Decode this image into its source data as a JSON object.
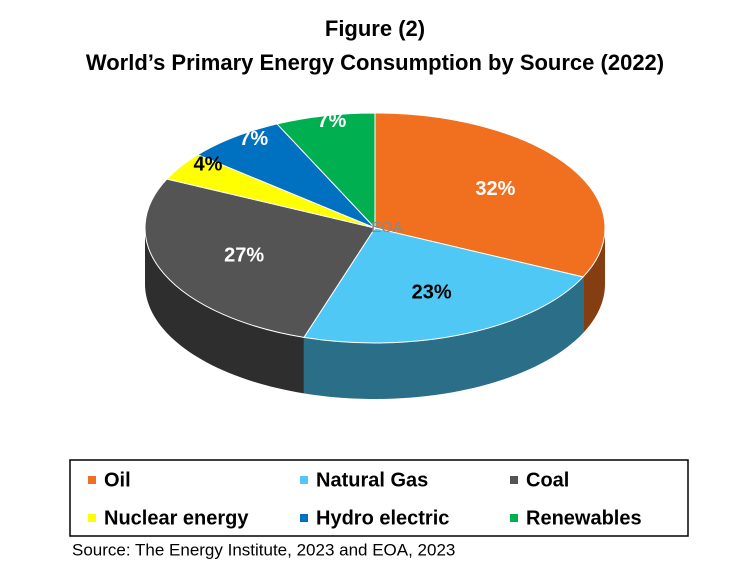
{
  "chart_data": {
    "type": "pie3d",
    "title": "Figure (2)",
    "subtitle": "World’s Primary Energy Consumption by Source (2022)",
    "categories": [
      "Oil",
      "Natural Gas",
      "Coal",
      "Nuclear energy",
      "Hydro electric",
      "Renewables"
    ],
    "values": [
      32,
      23,
      27,
      4,
      7,
      7
    ],
    "value_labels": [
      "32%",
      "23%",
      "27%",
      "4%",
      "7%",
      "7%"
    ],
    "colors": [
      "#f07020",
      "#4fc8f5",
      "#545454",
      "#ffff00",
      "#0070c0",
      "#00b050"
    ],
    "watermark": "EOA",
    "source": "Source: The Energy Institute, 2023 and EOA, 2023"
  }
}
